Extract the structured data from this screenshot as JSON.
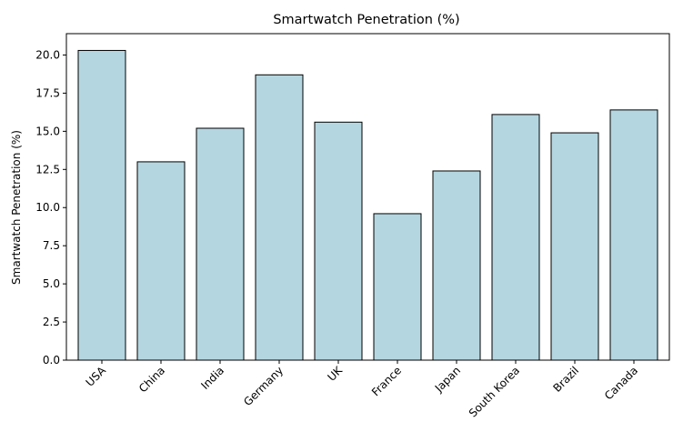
{
  "chart_data": {
    "type": "bar",
    "title": "Smartwatch Penetration (%)",
    "xlabel": "",
    "ylabel": "Smartwatch Penetration (%)",
    "categories": [
      "USA",
      "China",
      "India",
      "Germany",
      "UK",
      "France",
      "Japan",
      "South Korea",
      "Brazil",
      "Canada"
    ],
    "values": [
      20.3,
      13.0,
      15.2,
      18.7,
      15.6,
      9.6,
      12.4,
      16.1,
      14.9,
      16.4
    ],
    "ylim": [
      0,
      21.4
    ],
    "yticks": [
      0.0,
      2.5,
      5.0,
      7.5,
      10.0,
      12.5,
      15.0,
      17.5,
      20.0
    ],
    "ytick_labels": [
      "0.0",
      "2.5",
      "5.0",
      "7.5",
      "10.0",
      "12.5",
      "15.0",
      "17.5",
      "20.0"
    ],
    "grid": false,
    "colors": {
      "bar_fill": "#b4d6e0",
      "bar_edge": "#000000",
      "axis": "#000000"
    }
  }
}
